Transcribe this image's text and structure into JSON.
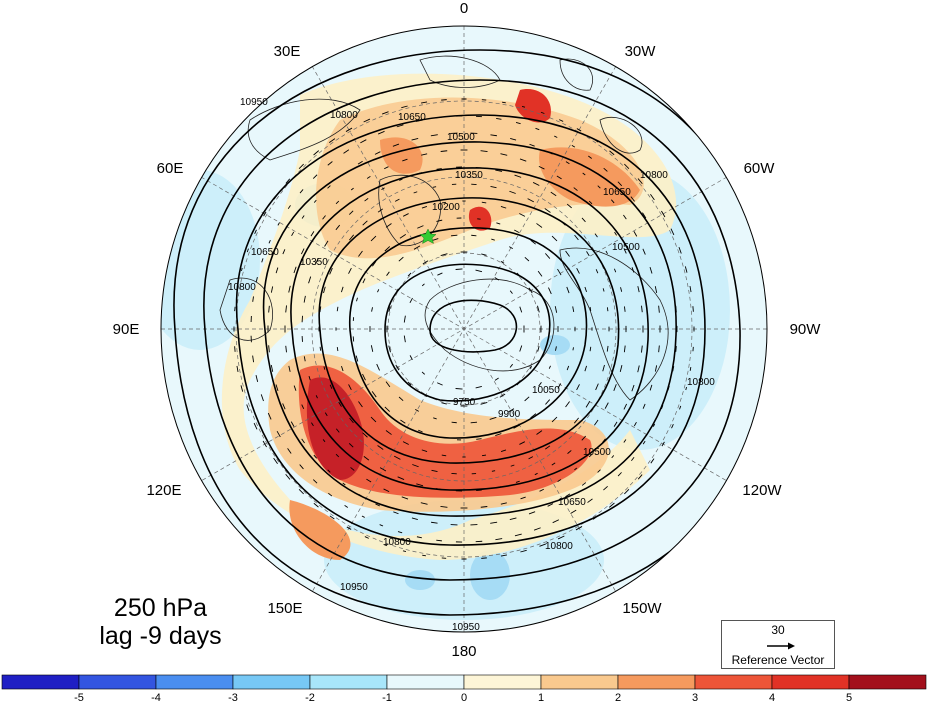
{
  "title": {
    "level": "250 hPa",
    "lag": "lag -9 days"
  },
  "map": {
    "projection": "north-polar-stereographic",
    "longitude_labels": {
      "0": "0",
      "30W": "30W",
      "60W": "60W",
      "90W": "90W",
      "120W": "120W",
      "150W": "150W",
      "180": "180",
      "150E": "150E",
      "120E": "120E",
      "90E": "90E",
      "60E": "60E",
      "30E": "30E"
    },
    "contour_levels": [
      "9750",
      "9900",
      "10050",
      "10200",
      "10350",
      "10500",
      "10650",
      "10800",
      "10950"
    ],
    "marker": {
      "name": "green star",
      "color": "#33cc33"
    }
  },
  "reference_vector": {
    "magnitude": "30",
    "label": "Reference Vector"
  },
  "colorbar": {
    "ticks": [
      "-5",
      "-4",
      "-3",
      "-2",
      "-1",
      "0",
      "1",
      "2",
      "3",
      "4",
      "5"
    ],
    "colors": [
      "#1f1fc4",
      "#3355e0",
      "#4a8ef0",
      "#77c8f5",
      "#a8e6fa",
      "#e8f8fc",
      "#fdf5d7",
      "#f9c98e",
      "#f59a5e",
      "#ed5538",
      "#e13226",
      "#a3101c"
    ]
  }
}
